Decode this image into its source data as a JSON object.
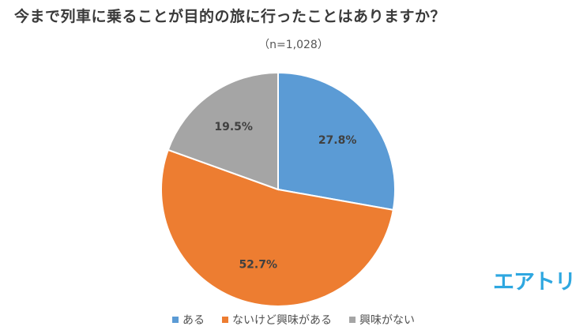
{
  "header": {
    "title": "今まで列車に乗ることが目的の旅に行ったことはありますか？",
    "sample_size": "（n=1,028）"
  },
  "chart_data": {
    "type": "pie",
    "start_angle_deg": 0,
    "direction": "clockwise",
    "slices": [
      {
        "label": "ある",
        "value": 27.8,
        "display": "27.8%",
        "color": "#5b9bd5"
      },
      {
        "label": "ないけど興味がある",
        "value": 52.7,
        "display": "52.7%",
        "color": "#ed7d31"
      },
      {
        "label": "興味がない",
        "value": 19.5,
        "display": "19.5%",
        "color": "#a5a5a5"
      }
    ],
    "legend_position": "bottom"
  },
  "brand": {
    "logo_text": "エアトリ",
    "color": "#2ea7e0"
  }
}
